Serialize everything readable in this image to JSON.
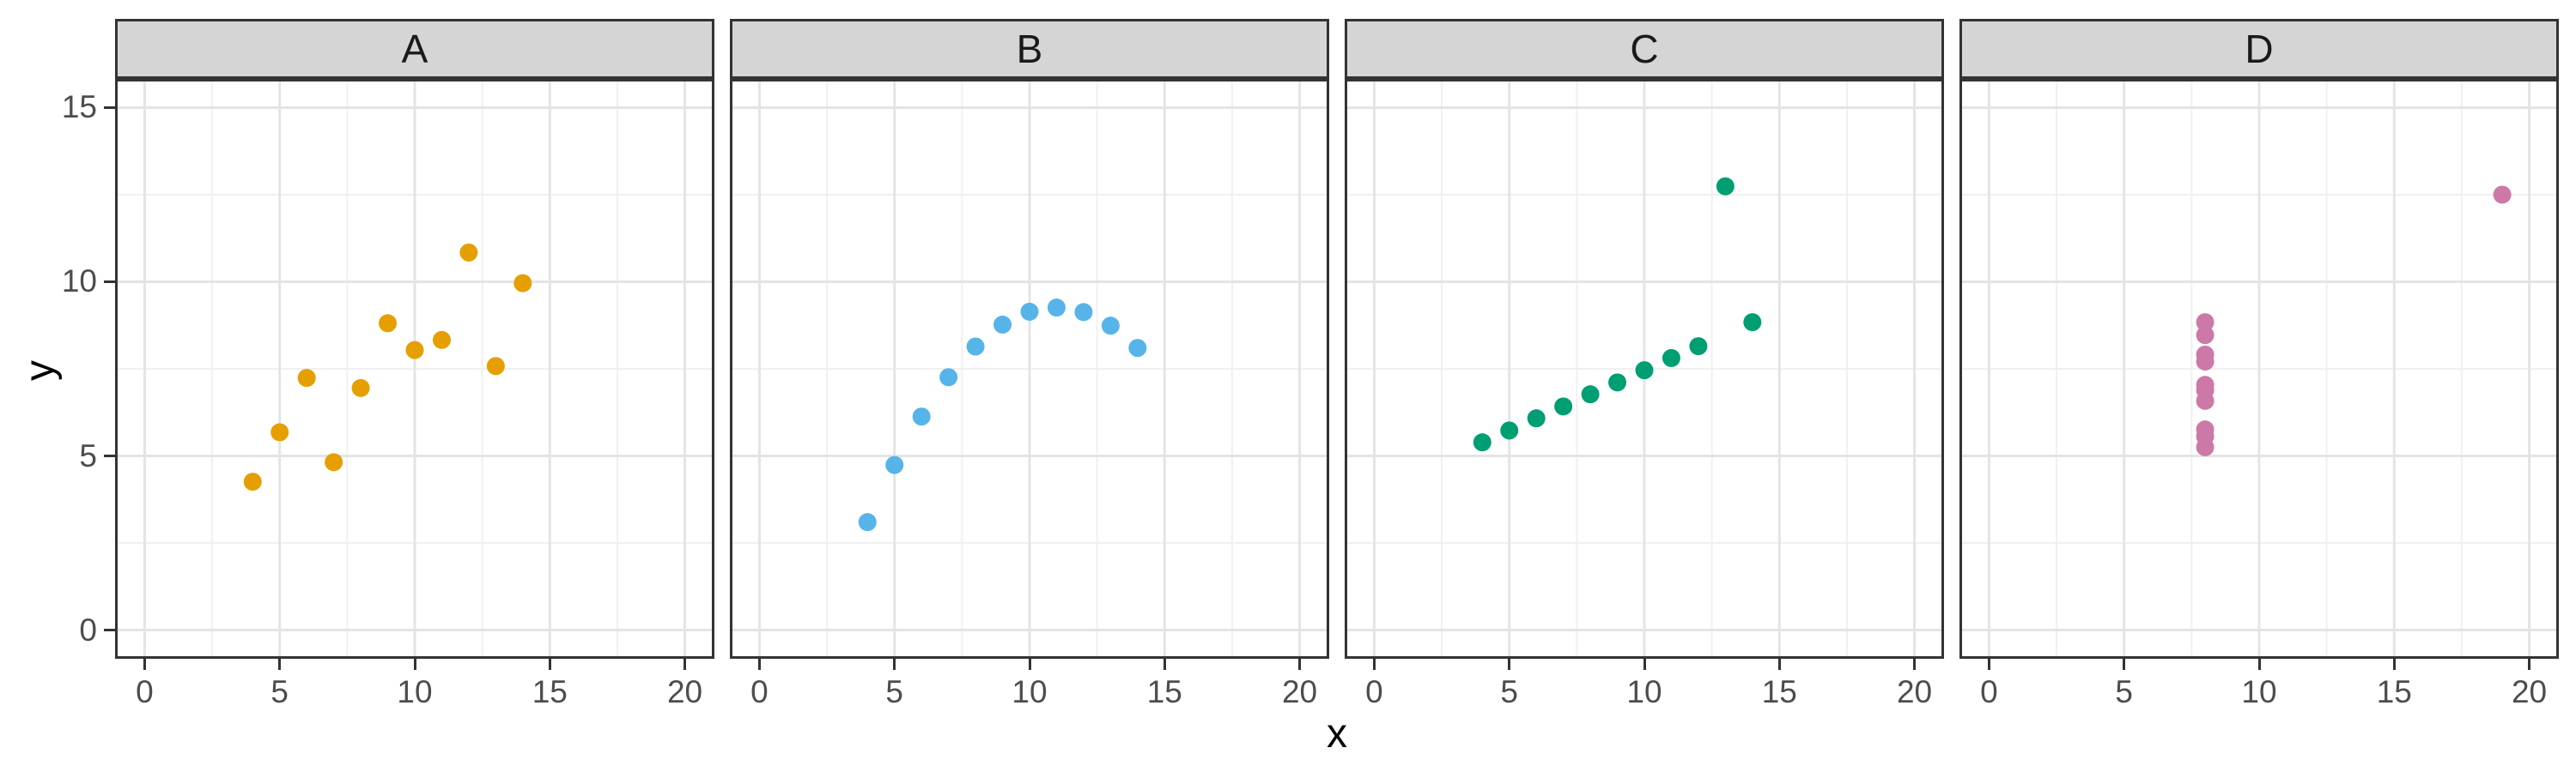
{
  "figure": {
    "background": "#FFFFFF"
  },
  "chart_data": {
    "type": "scatter",
    "title": "",
    "xlabel": "x",
    "ylabel": "y",
    "facets": [
      {
        "label": "A",
        "color": "#E69F00",
        "x": [
          10,
          8,
          13,
          9,
          11,
          14,
          6,
          4,
          12,
          7,
          5
        ],
        "y": [
          8.04,
          6.95,
          7.58,
          8.81,
          8.33,
          9.96,
          7.24,
          4.26,
          10.84,
          4.82,
          5.68
        ]
      },
      {
        "label": "B",
        "color": "#56B4E9",
        "x": [
          10,
          8,
          13,
          9,
          11,
          14,
          6,
          4,
          12,
          7,
          5
        ],
        "y": [
          9.14,
          8.14,
          8.74,
          8.77,
          9.26,
          8.1,
          6.13,
          3.1,
          9.13,
          7.26,
          4.74
        ]
      },
      {
        "label": "C",
        "color": "#009E73",
        "x": [
          10,
          8,
          13,
          9,
          11,
          14,
          6,
          4,
          12,
          7,
          5
        ],
        "y": [
          7.46,
          6.77,
          12.74,
          7.11,
          7.81,
          8.84,
          6.08,
          5.39,
          8.15,
          6.42,
          5.73
        ]
      },
      {
        "label": "D",
        "color": "#CC79A7",
        "x": [
          8,
          8,
          8,
          8,
          8,
          8,
          8,
          19,
          8,
          8,
          8
        ],
        "y": [
          6.58,
          5.76,
          7.71,
          8.84,
          8.47,
          7.04,
          5.25,
          12.5,
          5.56,
          7.91,
          6.89
        ]
      }
    ],
    "x_ticks": {
      "values": [
        0,
        5,
        10,
        15,
        20
      ],
      "labels": [
        "0",
        "5",
        "10",
        "15",
        "20"
      ]
    },
    "y_ticks": {
      "values": [
        0,
        5,
        10,
        15
      ],
      "labels": [
        "0",
        "5",
        "10",
        "15"
      ]
    },
    "x_minor": [
      2.5,
      7.5,
      12.5,
      17.5
    ],
    "y_minor": [
      2.5,
      7.5,
      12.5
    ],
    "xlim": [
      -1,
      21
    ],
    "ylim": [
      -0.75,
      15.75
    ],
    "grid": "major+minor",
    "legend": "none",
    "point_radius": 10.5,
    "theme": {
      "strip_bg": "#D5D5D5",
      "strip_text": "#1A1A1A",
      "panel_bg": "#FFFFFF",
      "panel_border": "#333333",
      "grid_major": "#E4E4E4",
      "grid_minor": "#F0F0F0",
      "axis_tick": "#333333",
      "tick_label": "#4D4D4D",
      "axis_title": "#000000"
    }
  }
}
